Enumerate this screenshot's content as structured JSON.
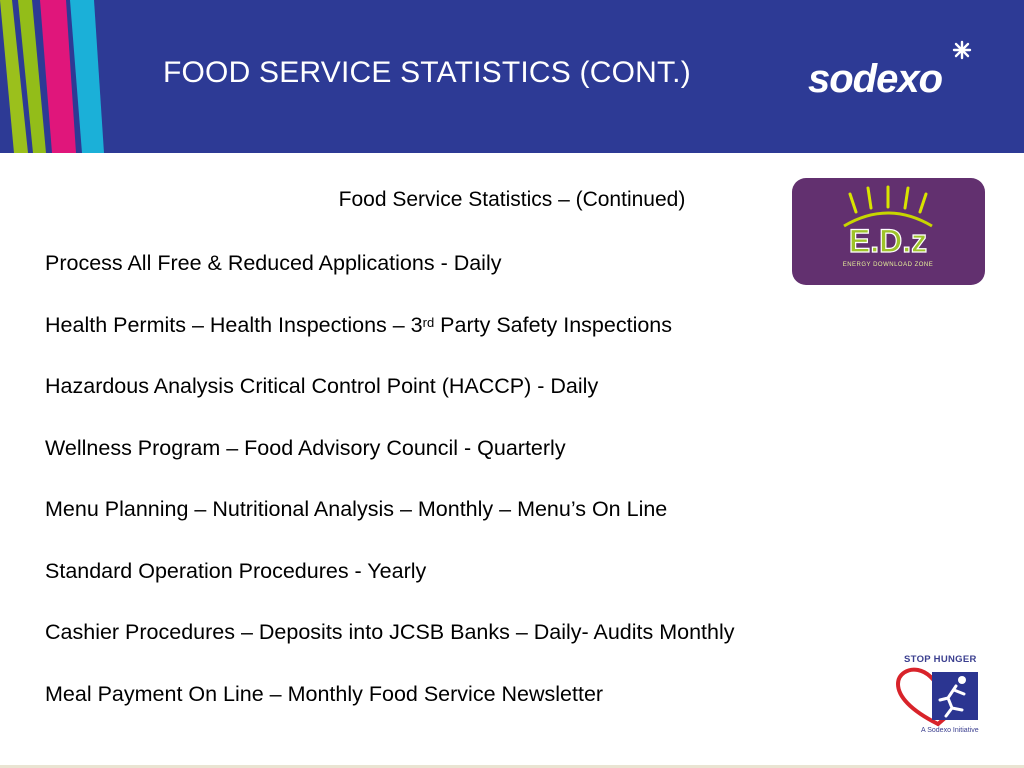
{
  "header": {
    "title": "FOOD SERVICE STATISTICS (CONT.)",
    "brand": "sodexo",
    "colors": {
      "background": "#2d3a95",
      "stripe_green": "#9bc01c",
      "stripe_magenta": "#e0167b",
      "stripe_cyan": "#1bb0d8"
    }
  },
  "content": {
    "subtitle": "Food Service Statistics – (Continued)",
    "items": [
      {
        "text": "Process All Free & Reduced Applications - Daily"
      },
      {
        "pre": "Health Permits – Health Inspections – 3",
        "sup": "rd",
        "post": " Party Safety Inspections"
      },
      {
        "text": "Hazardous Analysis Critical Control Point (HACCP) - Daily"
      },
      {
        "text": "Wellness Program – Food Advisory Council - Quarterly"
      },
      {
        "text": "Menu Planning – Nutritional Analysis – Monthly – Menu’s On Line"
      },
      {
        "text": "Standard Operation Procedures - Yearly"
      },
      {
        "text": "Cashier Procedures – Deposits into JCSB Banks – Daily- Audits Monthly"
      },
      {
        "text": "Meal Payment On Line – Monthly Food Service Newsletter"
      }
    ]
  },
  "edz_badge": {
    "logo_text": "E.D.z",
    "tagline": "ENERGY DOWNLOAD ZONE"
  },
  "stop_hunger": {
    "title": "STOP HUNGER",
    "caption": "A Sodexo Initiative"
  }
}
